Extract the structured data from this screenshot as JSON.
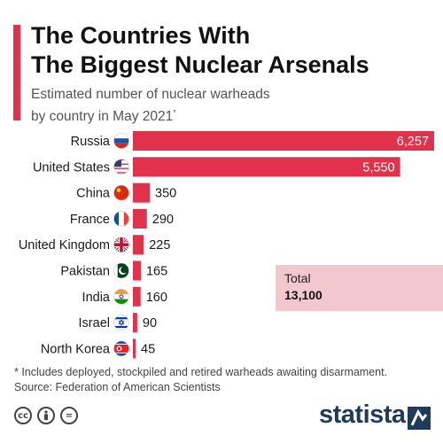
{
  "header": {
    "title_line1": "The Countries With",
    "title_line2": "The Biggest Nuclear Arsenals",
    "subtitle_line1": "Estimated number of nuclear warheads",
    "subtitle_line2": "by country in May 2021",
    "subtitle_marker": "*"
  },
  "chart_data": {
    "type": "bar",
    "orientation": "horizontal",
    "categories": [
      "Russia",
      "United States",
      "China",
      "France",
      "United Kingdom",
      "Pakistan",
      "India",
      "Israel",
      "North Korea"
    ],
    "values": [
      6257,
      5550,
      350,
      290,
      225,
      165,
      160,
      90,
      45
    ],
    "value_labels": [
      "6,257",
      "5,550",
      "350",
      "290",
      "225",
      "165",
      "160",
      "90",
      "45"
    ],
    "flags": [
      "russia-flag-icon",
      "usa-flag-icon",
      "china-flag-icon",
      "france-flag-icon",
      "uk-flag-icon",
      "pakistan-flag-icon",
      "india-flag-icon",
      "israel-flag-icon",
      "north-korea-flag-icon"
    ],
    "bar_color": "#e0324b",
    "grid": false
  },
  "total": {
    "label": "Total",
    "value": "13,100"
  },
  "footer": {
    "note": "* Includes deployed, stockpiled and retired warheads awaiting disarmament.",
    "source": "Source: Federation of American Scientists",
    "license_icons": [
      "cc-icon",
      "by-icon",
      "nd-icon"
    ],
    "logo_text": "statista"
  },
  "colors": {
    "accent": "#e0324b",
    "total_bg": "#f2c8ce",
    "logo": "#1f3a5a"
  }
}
